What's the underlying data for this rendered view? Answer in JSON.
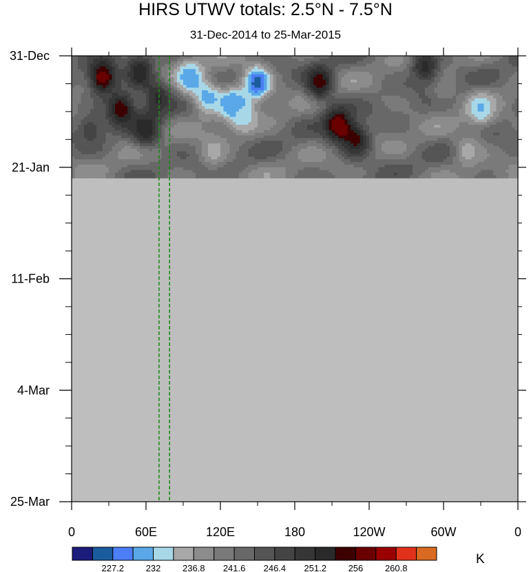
{
  "chart_data": {
    "type": "heatmap",
    "title": "HIRS UTWV totals: 2.5°N - 7.5°N",
    "subtitle": "31-Dec-2014 to 25-Mar-2015",
    "x_ticks": [
      "0",
      "60E",
      "120E",
      "180",
      "120W",
      "60W",
      "0"
    ],
    "x_tick_lon": [
      0,
      60,
      120,
      180,
      240,
      300,
      360
    ],
    "xlim": [
      0,
      360
    ],
    "y_ticks": [
      "31-Dec",
      "21-Jan",
      "11-Feb",
      "4-Mar",
      "25-Mar"
    ],
    "y_tick_day": [
      0,
      21,
      42,
      63,
      84
    ],
    "ylim_days": [
      0,
      84
    ],
    "data_end_day": 23,
    "missing_color": "#bebebe",
    "colorbar": {
      "unit": "K",
      "labels": [
        "227.2",
        "232",
        "236.8",
        "241.6",
        "246.4",
        "251.2",
        "256",
        "260.8"
      ],
      "colors": [
        "#1c1c7c",
        "#1a5c9e",
        "#4c7ef5",
        "#5aa8e8",
        "#a8d8e8",
        "#a8a8a8",
        "#8c8c8c",
        "#7a7a7a",
        "#686868",
        "#555555",
        "#444444",
        "#363636",
        "#2a2a2a",
        "#3c0000",
        "#6a0000",
        "#9a0000",
        "#e0321a",
        "#d86a22"
      ]
    },
    "reference_lines_lon": [
      70.5,
      79
    ],
    "reference_line_color": "#1a8a1a",
    "regions": [
      {
        "lon": 25,
        "day": 4,
        "val": 260.8
      },
      {
        "lon": 40,
        "day": 10,
        "val": 258
      },
      {
        "lon": 55,
        "day": 3,
        "val": 256
      },
      {
        "lon": 60,
        "day": 14,
        "val": 256
      },
      {
        "lon": 70,
        "day": 8,
        "val": 254
      },
      {
        "lon": 15,
        "day": 14,
        "val": 250
      },
      {
        "lon": 95,
        "day": 4,
        "val": 232
      },
      {
        "lon": 110,
        "day": 8,
        "val": 234
      },
      {
        "lon": 130,
        "day": 9,
        "val": 232
      },
      {
        "lon": 150,
        "day": 5,
        "val": 228
      },
      {
        "lon": 140,
        "day": 12,
        "val": 237
      },
      {
        "lon": 115,
        "day": 18,
        "val": 238
      },
      {
        "lon": 200,
        "day": 5,
        "val": 258
      },
      {
        "lon": 215,
        "day": 13,
        "val": 260.8
      },
      {
        "lon": 230,
        "day": 16,
        "val": 256
      },
      {
        "lon": 285,
        "day": 2,
        "val": 255
      },
      {
        "lon": 330,
        "day": 10,
        "val": 234
      },
      {
        "lon": 320,
        "day": 18,
        "val": 238
      },
      {
        "lon": 300,
        "day": 6,
        "val": 242
      }
    ]
  }
}
